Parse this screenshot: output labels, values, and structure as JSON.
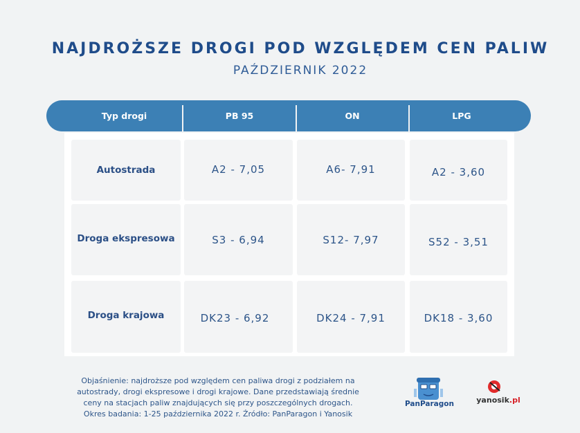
{
  "header": {
    "title": "NAJDROŻSZE DROGI POD WZGLĘDEM CEN PALIW",
    "subtitle": "PAŹDZIERNIK 2022"
  },
  "table": {
    "columns": [
      "Typ drogi",
      "PB 95",
      "ON",
      "LPG"
    ],
    "rows": [
      {
        "label": "Autostrada",
        "pb95": "A2 - 7,05",
        "on": "A6- 7,91",
        "lpg": "A2 - 3,60"
      },
      {
        "label": "Droga ekspresowa",
        "pb95": "S3 - 6,94",
        "on": "S12- 7,97",
        "lpg": "S52 - 3,51"
      },
      {
        "label": "Droga krajowa",
        "pb95": "DK23 - 6,92",
        "on": "DK24 - 7,91",
        "lpg": "DK18 - 3,60"
      }
    ]
  },
  "footer": {
    "line1": "Objaśnienie: najdroższe pod względem cen paliwa drogi z podziałem na",
    "line2": "autostrady, drogi ekspresowe i drogi krajowe. Dane przedstawiają średnie",
    "line3": "ceny na stacjach paliw znajdujących się przy poszczególnych drogach.",
    "line4": "Okres badania: 1-25 października 2022 r. Źródło: PanParagon i Yanosik"
  },
  "logos": {
    "panparagon": "PanParagon",
    "yanosik_main": "yanosik",
    "yanosik_suffix": ".pl"
  },
  "colors": {
    "header_bar": "#3c80b5",
    "title": "#1f4c8a",
    "background": "#f1f3f4"
  }
}
